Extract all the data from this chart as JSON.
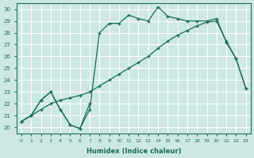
{
  "xlabel": "Humidex (Indice chaleur)",
  "xlim": [
    -0.5,
    23.5
  ],
  "ylim": [
    19.5,
    30.5
  ],
  "bg_color": "#cde8e4",
  "line_color": "#1a6b5a",
  "grid_color": "#b0d8d0",
  "curves": [
    {
      "x": [
        0,
        1,
        2,
        3,
        4,
        5,
        6,
        7
      ],
      "y": [
        20.5,
        21.0,
        22.3,
        23.0,
        21.5,
        20.2,
        19.9,
        22.0
      ]
    },
    {
      "x": [
        0,
        1,
        2,
        3,
        4,
        5,
        6,
        7,
        8,
        9,
        10,
        11,
        12,
        13,
        14,
        15,
        16,
        17,
        18,
        19,
        20,
        21,
        22,
        23
      ],
      "y": [
        20.5,
        21.0,
        21.5,
        22.0,
        22.3,
        22.5,
        22.7,
        23.0,
        23.5,
        24.0,
        24.5,
        25.0,
        25.5,
        26.0,
        26.7,
        27.3,
        27.8,
        28.2,
        28.6,
        28.9,
        29.0,
        27.3,
        25.8,
        23.3
      ]
    },
    {
      "x": [
        0,
        1,
        2,
        3,
        4,
        5,
        6,
        7,
        8,
        9,
        10,
        11,
        12,
        13,
        14,
        15,
        16,
        17,
        18,
        19,
        20,
        21,
        22,
        23
      ],
      "y": [
        20.5,
        21.0,
        22.3,
        23.0,
        21.5,
        20.2,
        19.9,
        21.5,
        28.0,
        28.8,
        28.8,
        29.5,
        29.2,
        29.0,
        30.2,
        29.4,
        29.2,
        29.0,
        29.0,
        29.0,
        29.2,
        27.2,
        25.8,
        23.3
      ]
    }
  ]
}
